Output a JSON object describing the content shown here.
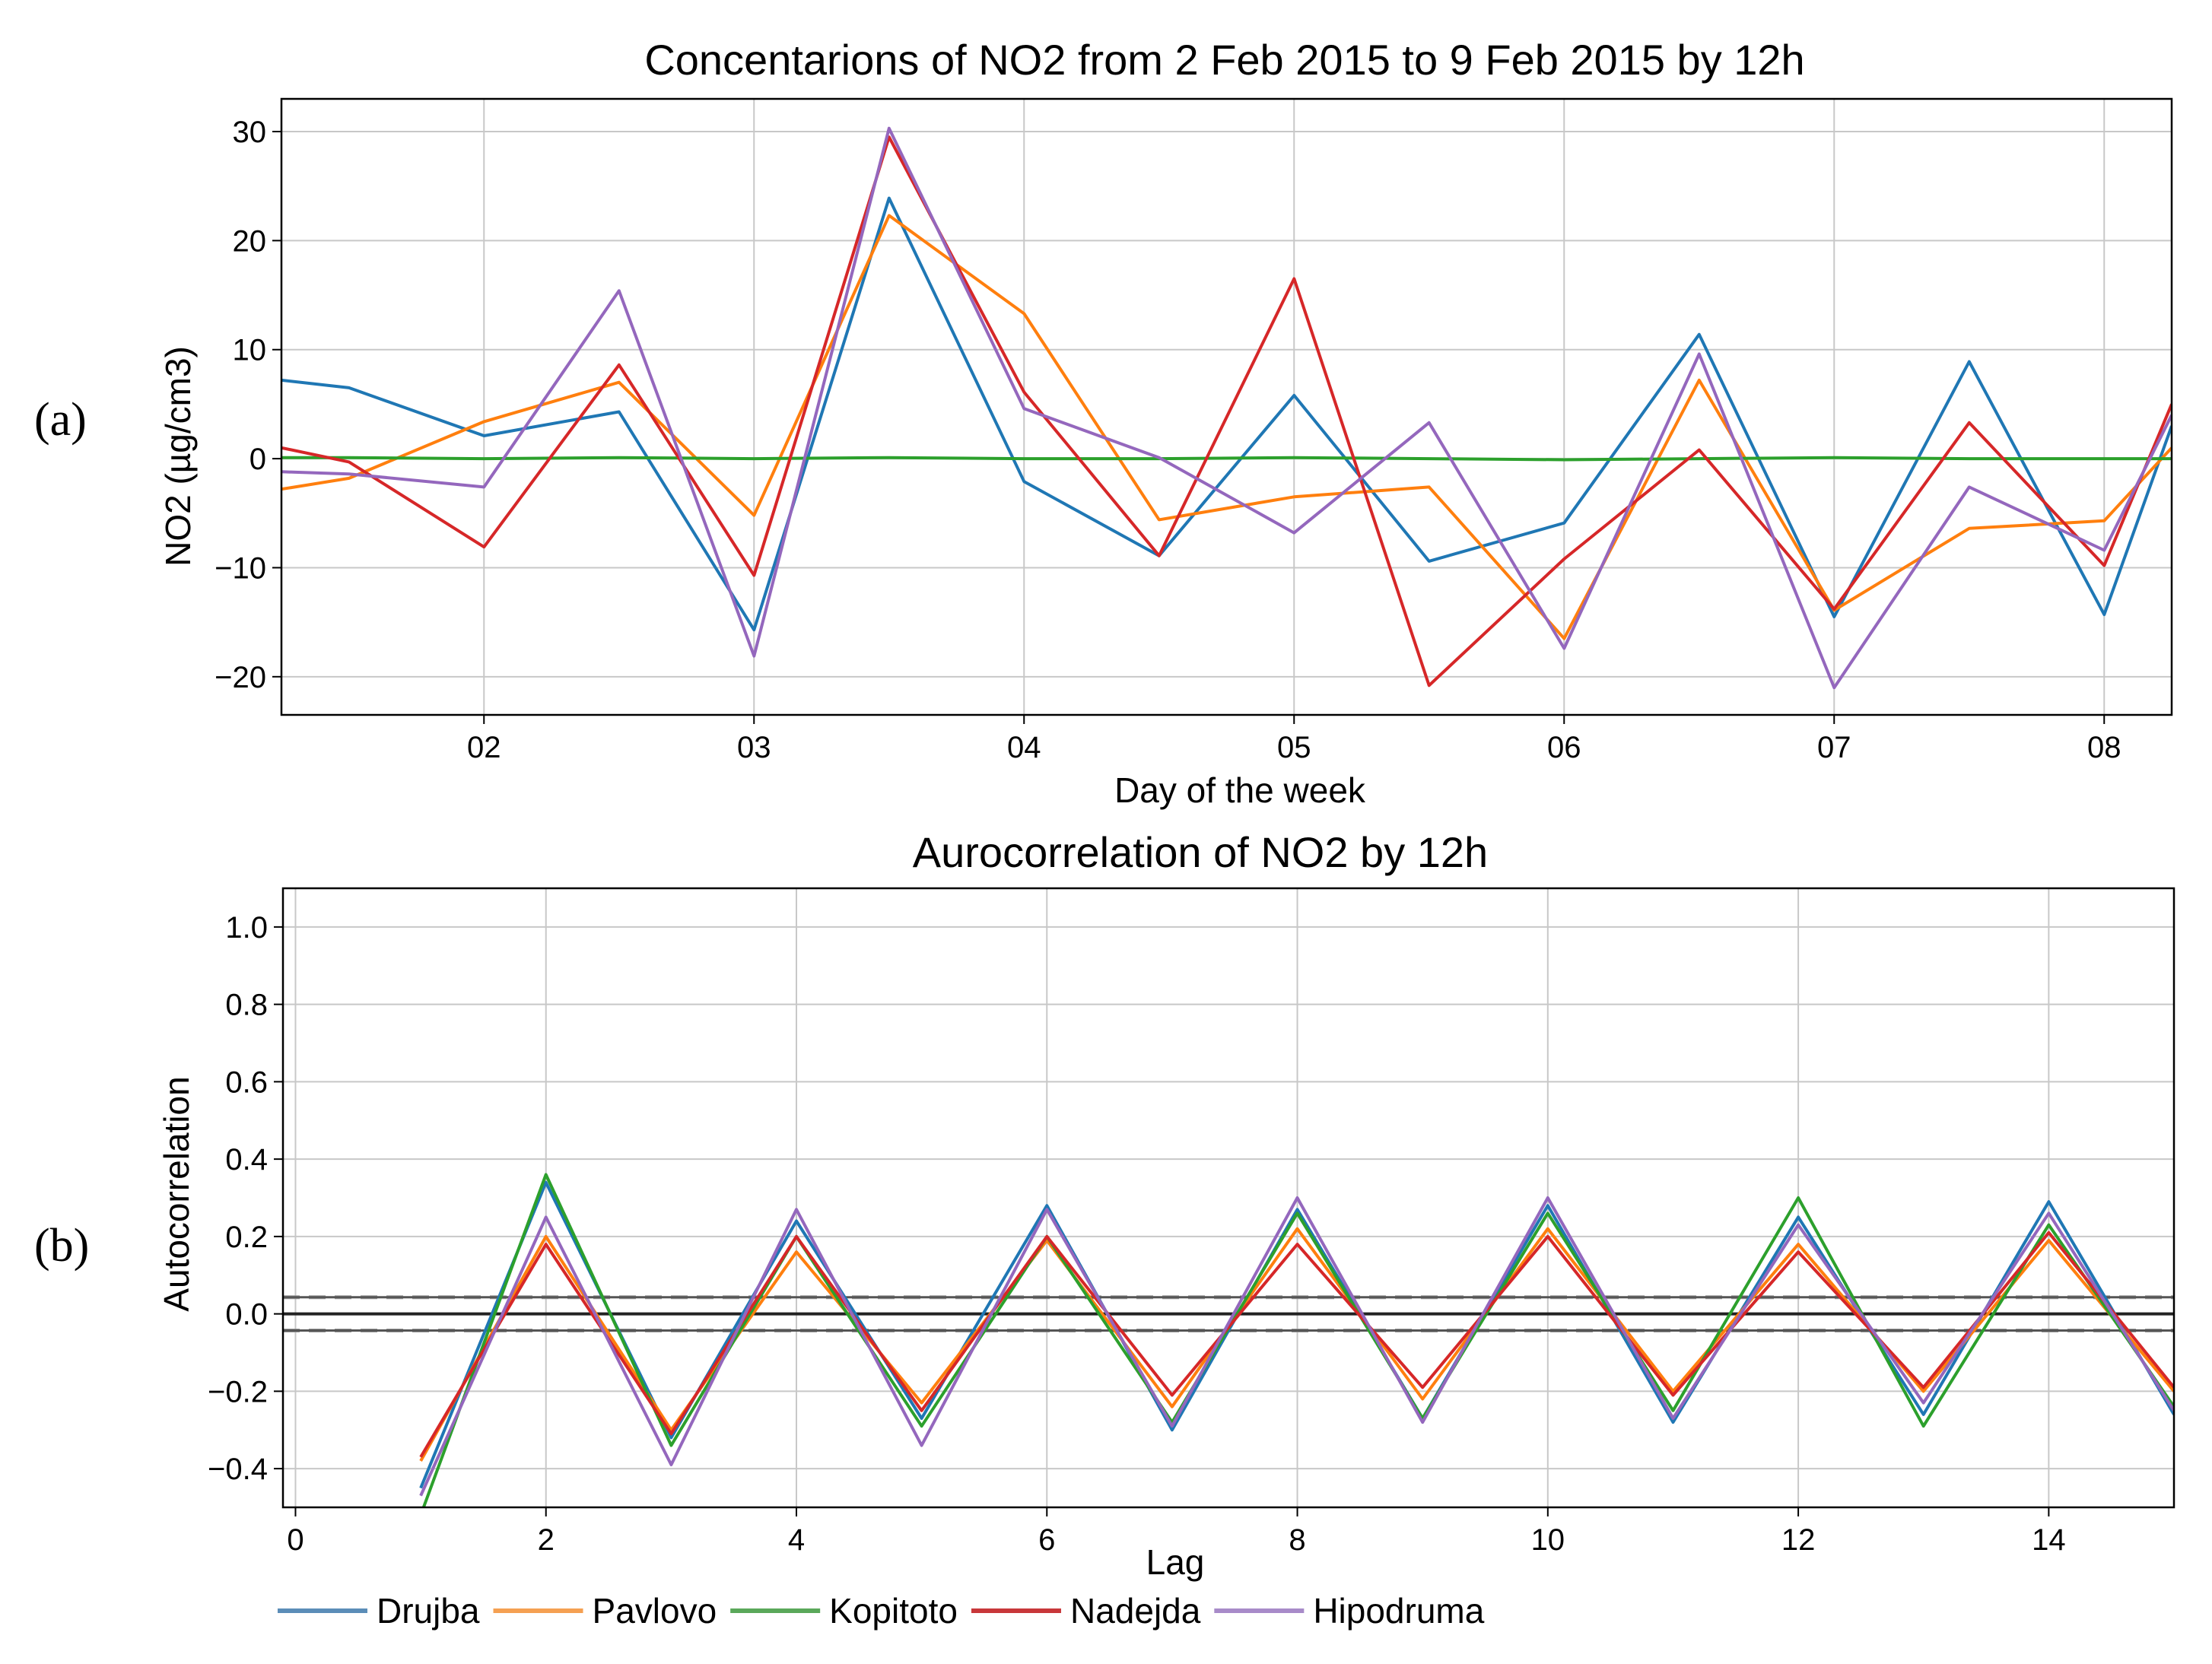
{
  "panel_labels": {
    "a": "(a)",
    "b": "(b)"
  },
  "chart_data": [
    {
      "type": "line",
      "title": "Concentarions of NO2 from 2 Feb 2015 to 9 Feb 2015 by 12h",
      "xlabel": "Day of the week",
      "ylabel": "NO2 (µg/cm3)",
      "xlim": [
        -0.5,
        13.5
      ],
      "ylim": [
        -23.5,
        33
      ],
      "x_tick_positions": [
        1,
        3,
        5,
        7,
        9,
        11,
        13
      ],
      "x_tick_labels": [
        "02",
        "03",
        "04",
        "05",
        "06",
        "07",
        "08"
      ],
      "y_ticks": [
        30,
        20,
        10,
        0,
        -10,
        -20
      ],
      "y_tick_labels": [
        "30",
        "20",
        "10",
        "0",
        "−10",
        "−20"
      ],
      "grid": true,
      "x": [
        -0.5,
        0,
        1,
        2,
        3,
        4,
        5,
        6,
        7,
        8,
        9,
        10,
        11,
        12,
        13,
        13.5
      ],
      "series": [
        {
          "name": "Drujba",
          "color": "#1f77b4",
          "values": [
            7.2,
            6.5,
            2.1,
            4.3,
            -15.7,
            23.9,
            -2.1,
            -8.9,
            5.8,
            -9.4,
            -5.9,
            11.4,
            -14.5,
            8.9,
            -14.3,
            3.0
          ]
        },
        {
          "name": "Pavlovo",
          "color": "#ff7f0e",
          "values": [
            -2.8,
            -1.8,
            3.4,
            7.0,
            -5.2,
            22.3,
            13.3,
            -5.6,
            -3.5,
            -2.6,
            -16.5,
            7.2,
            -13.9,
            -6.4,
            -5.7,
            1.0
          ]
        },
        {
          "name": "Kopitoto",
          "color": "#2ca02c",
          "values": [
            0.1,
            0.1,
            0.0,
            0.1,
            0.0,
            0.1,
            0.0,
            0.0,
            0.1,
            0.0,
            -0.1,
            0.0,
            0.1,
            0.0,
            0.0,
            0.0
          ]
        },
        {
          "name": "Nadejda",
          "color": "#d62728",
          "values": [
            1.0,
            -0.3,
            -8.1,
            8.6,
            -10.7,
            29.5,
            6.1,
            -8.9,
            16.5,
            -20.8,
            -9.2,
            0.8,
            -13.8,
            3.3,
            -9.8,
            5.0
          ]
        },
        {
          "name": "Hipodruma",
          "color": "#9467bd",
          "values": [
            -1.2,
            -1.4,
            -2.6,
            15.4,
            -18.1,
            30.3,
            4.6,
            0.1,
            -6.8,
            3.3,
            -17.4,
            9.6,
            -21.0,
            -2.6,
            -8.4,
            4.0
          ]
        }
      ]
    },
    {
      "type": "line",
      "title": "Aurocorrelation of NO2 by 12h",
      "xlabel": "Lag",
      "ylabel": "Autocorrelation",
      "xlim": [
        -0.1,
        15
      ],
      "ylim": [
        -0.5,
        1.1
      ],
      "x_ticks": [
        0,
        2,
        4,
        6,
        8,
        10,
        12,
        14
      ],
      "x_tick_labels": [
        "0",
        "2",
        "4",
        "6",
        "8",
        "10",
        "12",
        "14"
      ],
      "y_ticks": [
        1.0,
        0.8,
        0.6,
        0.4,
        0.2,
        0.0,
        -0.2,
        -0.4
      ],
      "y_tick_labels": [
        "1.0",
        "0.8",
        "0.6",
        "0.4",
        "0.2",
        "0.0",
        "−0.2",
        "−0.4"
      ],
      "grid": true,
      "confidence_bands": [
        0.043,
        -0.043
      ],
      "zero_line": 0.0,
      "lags": [
        1,
        2,
        3,
        4,
        5,
        6,
        7,
        8,
        9,
        10,
        11,
        12,
        13,
        14,
        15
      ],
      "series": [
        {
          "name": "Drujba",
          "color": "#1f77b4",
          "values": [
            -0.45,
            0.34,
            -0.32,
            0.24,
            -0.27,
            0.28,
            -0.3,
            0.27,
            -0.27,
            0.28,
            -0.28,
            0.25,
            -0.26,
            0.29,
            -0.26
          ]
        },
        {
          "name": "Pavlovo",
          "color": "#ff7f0e",
          "values": [
            -0.38,
            0.2,
            -0.3,
            0.16,
            -0.23,
            0.19,
            -0.24,
            0.22,
            -0.22,
            0.22,
            -0.2,
            0.18,
            -0.2,
            0.19,
            -0.2
          ]
        },
        {
          "name": "Kopitoto",
          "color": "#2ca02c",
          "values": [
            -0.52,
            0.36,
            -0.34,
            0.2,
            -0.29,
            0.2,
            -0.28,
            0.26,
            -0.27,
            0.26,
            -0.25,
            0.3,
            -0.29,
            0.23,
            -0.24
          ]
        },
        {
          "name": "Nadejda",
          "color": "#d62728",
          "values": [
            -0.37,
            0.18,
            -0.31,
            0.2,
            -0.25,
            0.2,
            -0.21,
            0.18,
            -0.19,
            0.2,
            -0.21,
            0.16,
            -0.19,
            0.21,
            -0.19
          ]
        },
        {
          "name": "Hipodruma",
          "color": "#9467bd",
          "values": [
            -0.47,
            0.25,
            -0.39,
            0.27,
            -0.34,
            0.27,
            -0.29,
            0.3,
            -0.28,
            0.3,
            -0.27,
            0.23,
            -0.23,
            0.26,
            -0.25
          ]
        }
      ],
      "legend": {
        "placement": "below",
        "entries": [
          {
            "label": "Drujba",
            "color": "#5b8db8"
          },
          {
            "label": "Pavlovo",
            "color": "#f5a052"
          },
          {
            "label": "Kopitoto",
            "color": "#5aa85a"
          },
          {
            "label": "Nadejda",
            "color": "#c8373a"
          },
          {
            "label": "Hipodruma",
            "color": "#a88bc9"
          }
        ]
      }
    }
  ]
}
